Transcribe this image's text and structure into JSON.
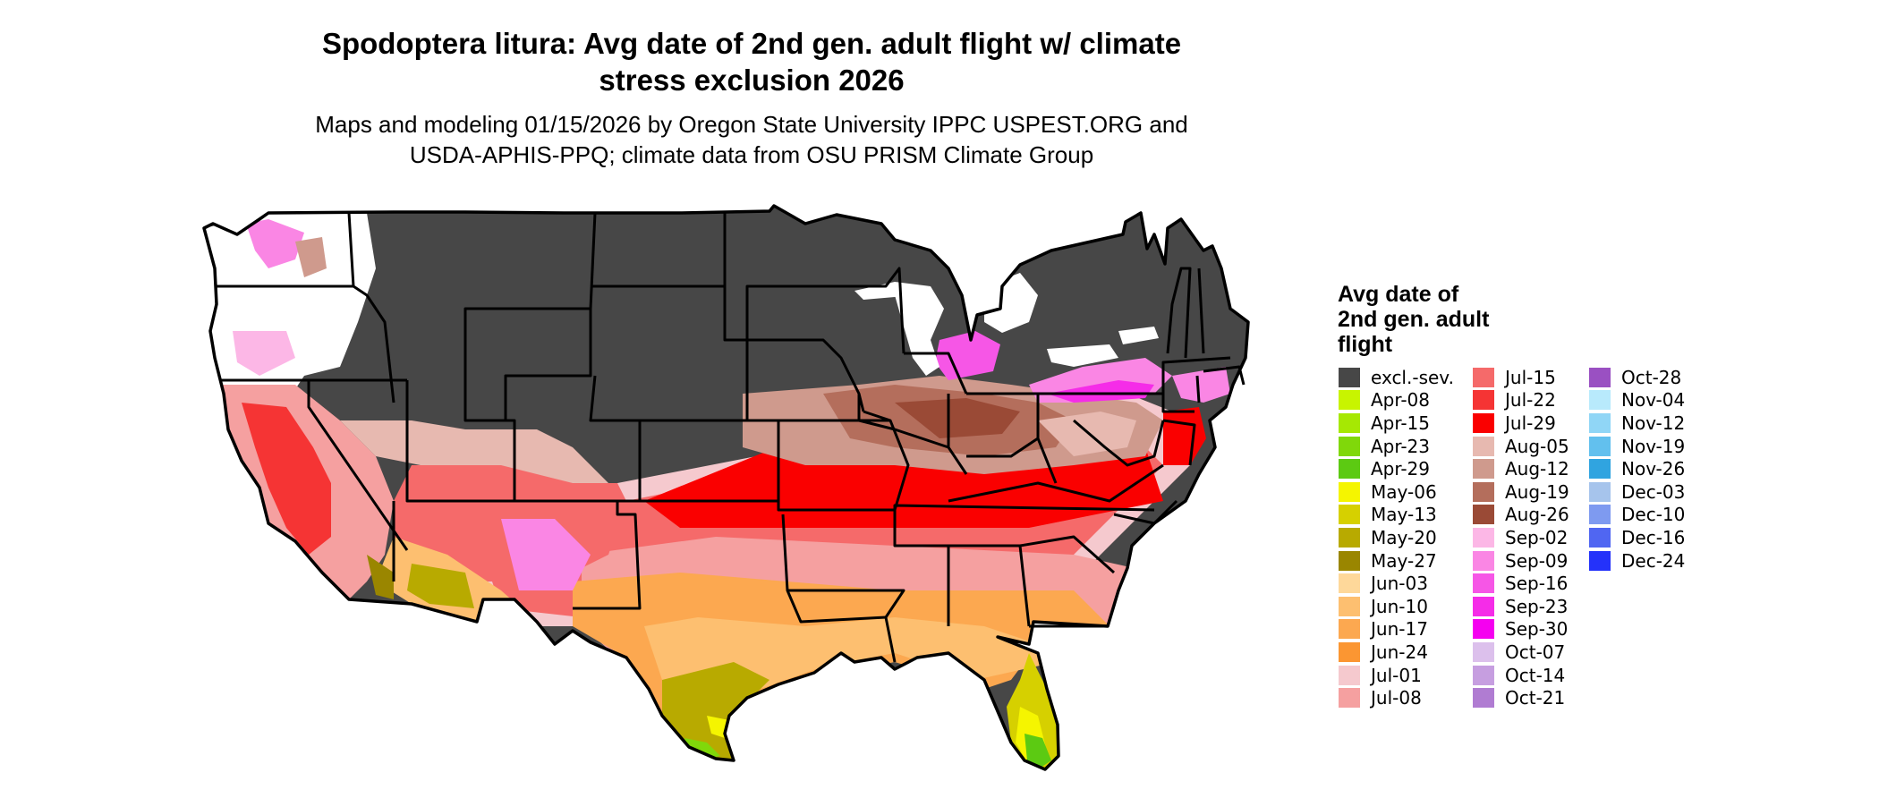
{
  "title": "Spodoptera litura: Avg date of 2nd gen. adult flight w/ climate\nstress exclusion 2026",
  "subtitle": "Maps and modeling 01/15/2026 by Oregon State University IPPC USPEST.ORG and\nUSDA-APHIS-PPQ; climate data from OSU PRISM Climate Group",
  "legend": {
    "title": "Avg date of\n2nd gen. adult\nflight",
    "items": [
      {
        "label": "excl.-sev.",
        "color": "#474747"
      },
      {
        "label": "Apr-08",
        "color": "#c8f400"
      },
      {
        "label": "Apr-15",
        "color": "#a6e803"
      },
      {
        "label": "Apr-23",
        "color": "#80d80a"
      },
      {
        "label": "Apr-29",
        "color": "#5cca12"
      },
      {
        "label": "May-06",
        "color": "#f5f500"
      },
      {
        "label": "May-13",
        "color": "#d6d000"
      },
      {
        "label": "May-20",
        "color": "#b8aa00"
      },
      {
        "label": "May-27",
        "color": "#9a8600"
      },
      {
        "label": "Jun-03",
        "color": "#fed89a"
      },
      {
        "label": "Jun-10",
        "color": "#fdbf70"
      },
      {
        "label": "Jun-17",
        "color": "#fca850"
      },
      {
        "label": "Jun-24",
        "color": "#fb9632"
      },
      {
        "label": "Jul-01",
        "color": "#f5c9ce"
      },
      {
        "label": "Jul-08",
        "color": "#f5a0a0"
      },
      {
        "label": "Jul-15",
        "color": "#f56a6a"
      },
      {
        "label": "Jul-22",
        "color": "#f53434"
      },
      {
        "label": "Jul-29",
        "color": "#fa0000"
      },
      {
        "label": "Aug-05",
        "color": "#e7b9b0"
      },
      {
        "label": "Aug-12",
        "color": "#cf9a8d"
      },
      {
        "label": "Aug-19",
        "color": "#b46e5c"
      },
      {
        "label": "Aug-26",
        "color": "#9a4a36"
      },
      {
        "label": "Sep-02",
        "color": "#fcb7e6"
      },
      {
        "label": "Sep-09",
        "color": "#fa86e4"
      },
      {
        "label": "Sep-16",
        "color": "#f656e6"
      },
      {
        "label": "Sep-23",
        "color": "#f52ce8"
      },
      {
        "label": "Sep-30",
        "color": "#f500f0"
      },
      {
        "label": "Oct-07",
        "color": "#dcc0ec"
      },
      {
        "label": "Oct-14",
        "color": "#c69ee0"
      },
      {
        "label": "Oct-21",
        "color": "#b07cd2"
      },
      {
        "label": "Oct-28",
        "color": "#9a50c2"
      },
      {
        "label": "Nov-04",
        "color": "#b8eafc"
      },
      {
        "label": "Nov-12",
        "color": "#90d6f6"
      },
      {
        "label": "Nov-19",
        "color": "#62c0ee"
      },
      {
        "label": "Nov-26",
        "color": "#30a4e0"
      },
      {
        "label": "Dec-03",
        "color": "#a6c4ec"
      },
      {
        "label": "Dec-10",
        "color": "#7e9af0"
      },
      {
        "label": "Dec-16",
        "color": "#5066f2"
      },
      {
        "label": "Dec-24",
        "color": "#2432fa"
      }
    ]
  }
}
